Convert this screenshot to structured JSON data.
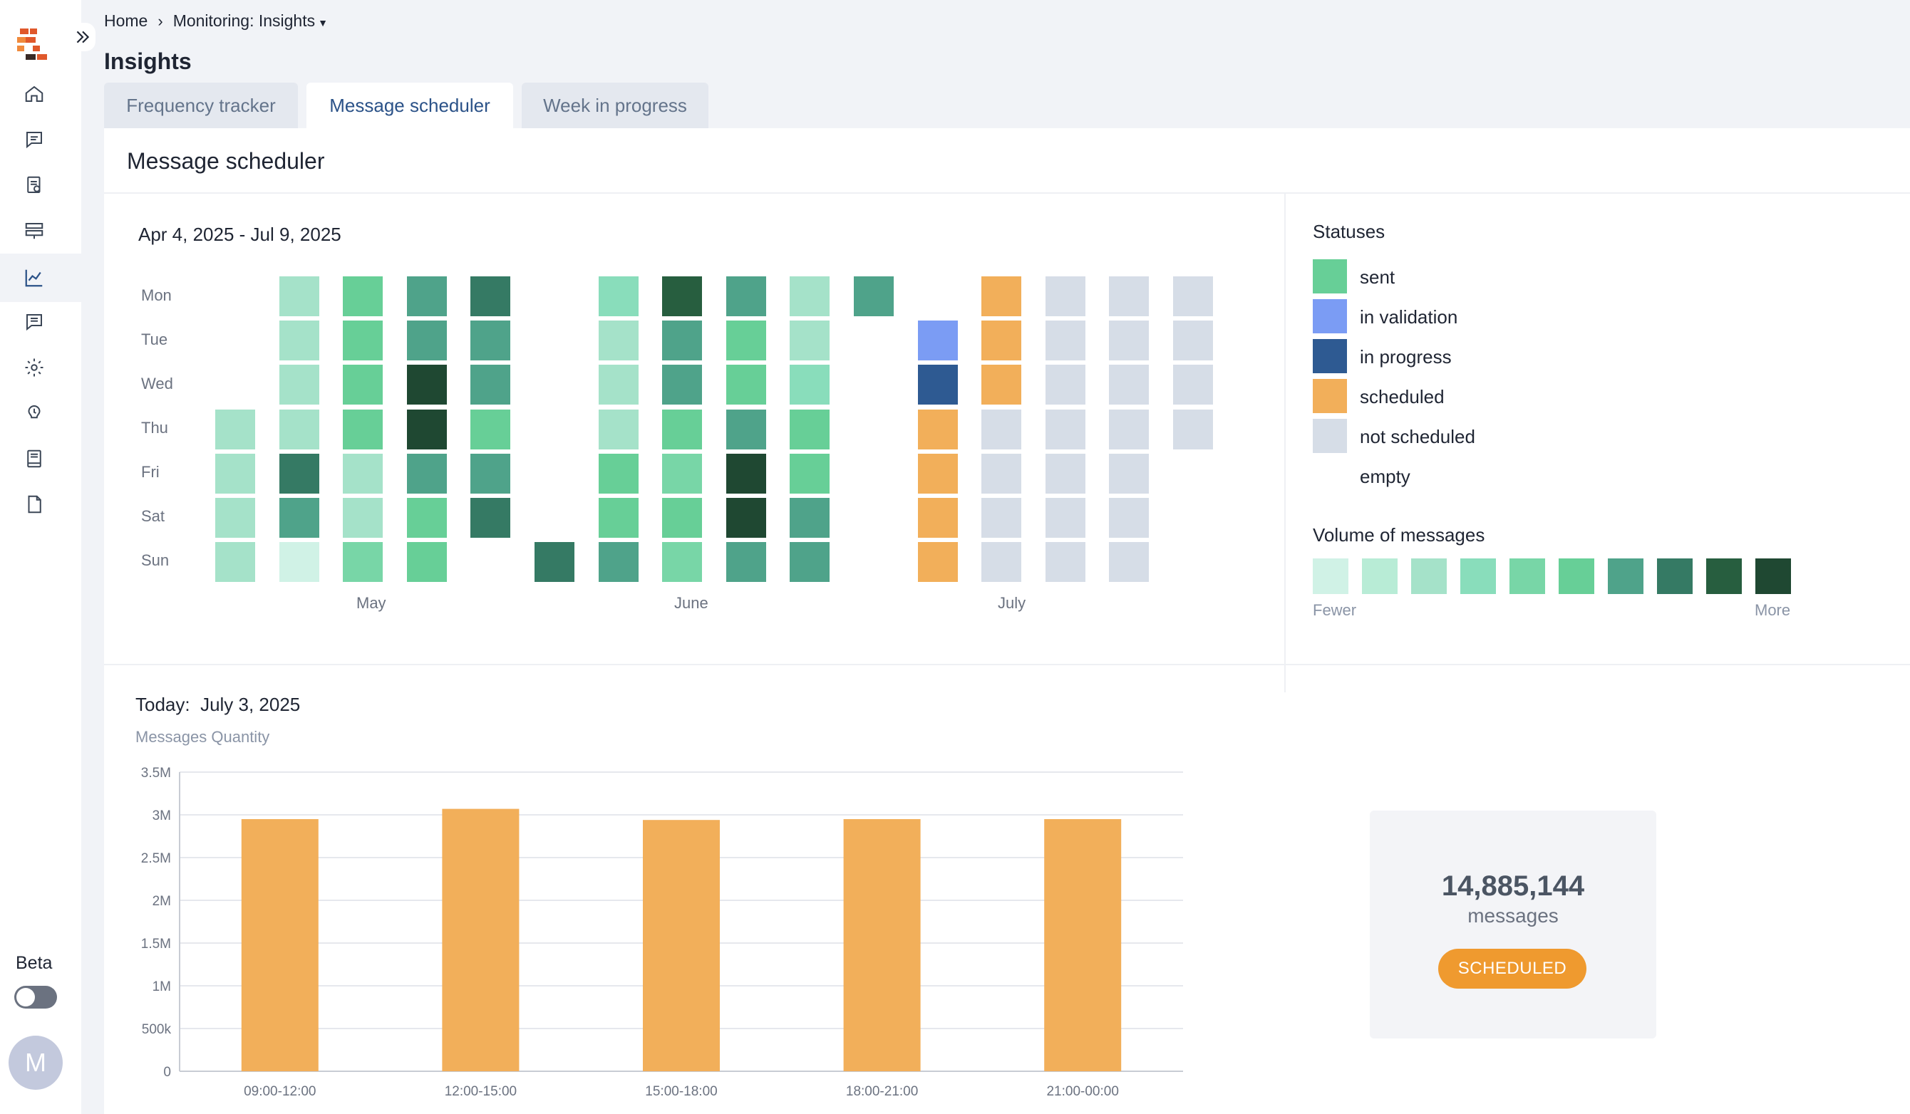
{
  "breadcrumb": {
    "home": "Home",
    "current": "Monitoring: Insights"
  },
  "page": {
    "title": "Insights"
  },
  "tabs": [
    {
      "label": "Frequency tracker",
      "active": false
    },
    {
      "label": "Message scheduler",
      "active": true
    },
    {
      "label": "Week in progress",
      "active": false
    }
  ],
  "sidebar": {
    "icons": [
      "home-icon",
      "messages-icon",
      "templates-icon",
      "stack-icon",
      "chart-icon",
      "chat-icon",
      "settings-icon",
      "support-icon",
      "book-icon",
      "document-icon"
    ],
    "active": "chart-icon",
    "beta_label": "Beta",
    "beta_enabled": false,
    "avatar_initial": "M"
  },
  "section": {
    "title": "Message scheduler"
  },
  "heatmap": {
    "date_range": "Apr 4, 2025 - Jul 9, 2025",
    "days": [
      "Mon",
      "Tue",
      "Wed",
      "Thu",
      "Fri",
      "Sat",
      "Sun"
    ],
    "months": [
      "May",
      "June",
      "July"
    ],
    "colors": {
      "v1": "#d0f2e6",
      "v2": "#b8ecd6",
      "v3": "#a5e2c9",
      "v4": "#89ddbb",
      "v5": "#78d6a7",
      "v6": "#67cf97",
      "v7": "#4fa38a",
      "v8": "#357a64",
      "v9": "#275e3f",
      "v10": "#1f4832",
      "validation": "#7b9cf4",
      "progress": "#2e5a92",
      "scheduled": "#f2af5a",
      "not_scheduled": "#d6dde7"
    },
    "weeks": [
      [
        null,
        null,
        null,
        "v3",
        "v3",
        "v3",
        "v3"
      ],
      [
        "v3",
        "v3",
        "v3",
        "v3",
        "v8",
        "v7",
        "v1"
      ],
      [
        "v6",
        "v6",
        "v6",
        "v6",
        "v3",
        "v3",
        "v5"
      ],
      [
        "v7",
        "v7",
        "v10",
        "v10",
        "v7",
        "v6",
        "v6"
      ],
      [
        "v8",
        "v7",
        "v7",
        "v6",
        "v7",
        "v8",
        null
      ],
      [
        null,
        null,
        null,
        null,
        null,
        null,
        "v8"
      ],
      [
        "v4",
        "v3",
        "v3",
        "v3",
        "v6",
        "v6",
        "v7"
      ],
      [
        "v9",
        "v7",
        "v7",
        "v6",
        "v5",
        "v6",
        "v5"
      ],
      [
        "v7",
        "v6",
        "v6",
        "v7",
        "v10",
        "v10",
        "v7"
      ],
      [
        "v3",
        "v3",
        "v4",
        "v6",
        "v6",
        "v7",
        "v7"
      ],
      [
        "v7",
        null,
        null,
        null,
        null,
        null,
        null
      ],
      [
        null,
        "validation",
        "progress",
        "scheduled",
        "scheduled",
        "scheduled",
        "scheduled"
      ],
      [
        "scheduled",
        "scheduled",
        "scheduled",
        "not_scheduled",
        "not_scheduled",
        "not_scheduled",
        "not_scheduled"
      ],
      [
        "not_scheduled",
        "not_scheduled",
        "not_scheduled",
        "not_scheduled",
        "not_scheduled",
        "not_scheduled",
        "not_scheduled"
      ],
      [
        "not_scheduled",
        "not_scheduled",
        "not_scheduled",
        "not_scheduled",
        "not_scheduled",
        "not_scheduled",
        "not_scheduled"
      ],
      [
        "not_scheduled",
        "not_scheduled",
        "not_scheduled",
        "not_scheduled",
        null,
        null,
        null
      ]
    ]
  },
  "statuses": {
    "title": "Statuses",
    "items": [
      {
        "label": "sent",
        "color": "#67cf97"
      },
      {
        "label": "in validation",
        "color": "#7b9cf4"
      },
      {
        "label": "in progress",
        "color": "#2e5a92"
      },
      {
        "label": "scheduled",
        "color": "#f2af5a"
      },
      {
        "label": "not scheduled",
        "color": "#d6dde7"
      },
      {
        "label": "empty",
        "color": "#ffffff"
      }
    ]
  },
  "volume": {
    "title": "Volume of messages",
    "fewer": "Fewer",
    "more": "More",
    "colors": [
      "#d0f2e6",
      "#b8ecd6",
      "#a5e2c9",
      "#89ddbb",
      "#78d6a7",
      "#67cf97",
      "#4fa38a",
      "#357a64",
      "#275e3f",
      "#1f4832"
    ]
  },
  "today": {
    "label": "Today:",
    "date": "July 3, 2025"
  },
  "chart_data": {
    "type": "bar",
    "ylabel": "Messages Quantity",
    "categories": [
      "09:00-12:00",
      "12:00-15:00",
      "15:00-18:00",
      "18:00-21:00",
      "21:00-00:00"
    ],
    "values": [
      2950000,
      3070000,
      2940000,
      2950000,
      2950000
    ],
    "ylim": [
      0,
      3500000
    ],
    "yticks": [
      0,
      500000,
      1000000,
      1500000,
      2000000,
      2500000,
      3000000,
      3500000
    ],
    "ytick_labels": [
      "0",
      "500k",
      "1M",
      "1.5M",
      "2M",
      "2.5M",
      "3M",
      "3.5M"
    ],
    "bar_color": "#f2af5a",
    "grid": true
  },
  "summary": {
    "count": "14,885,144",
    "unit": "messages",
    "status": "SCHEDULED"
  }
}
